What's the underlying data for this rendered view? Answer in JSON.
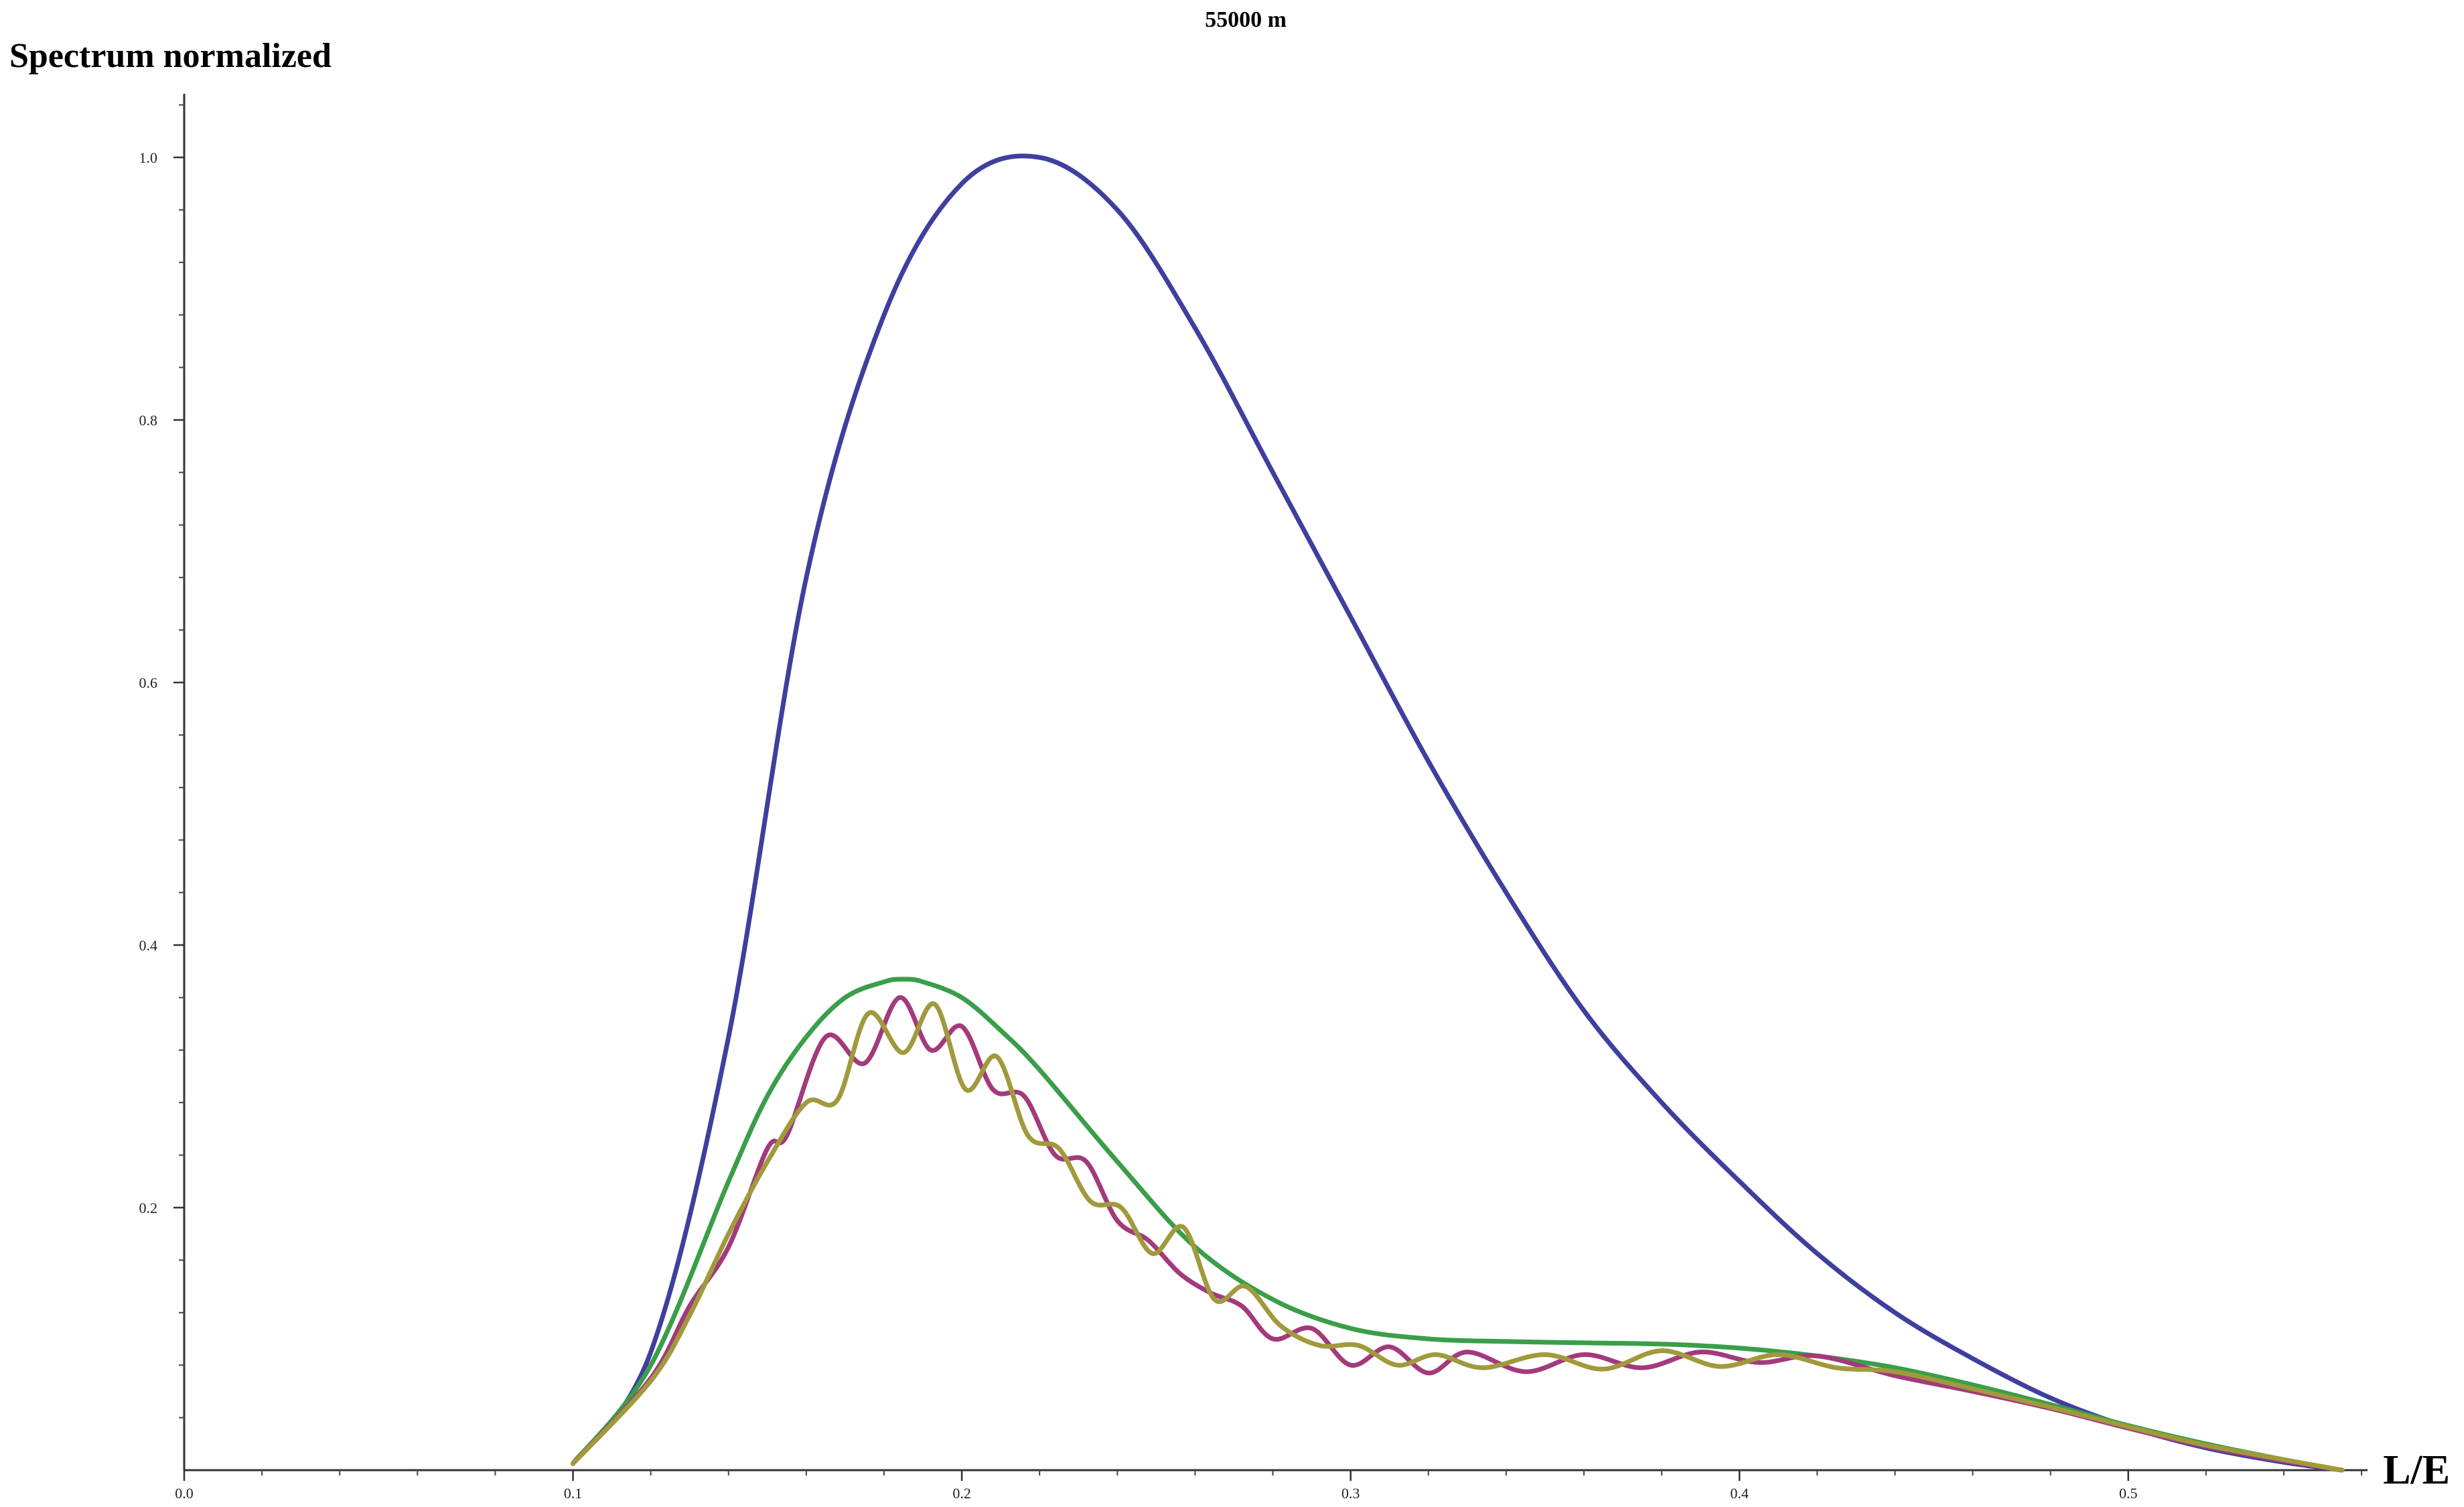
{
  "chart_data": {
    "type": "line",
    "title": "55000 m",
    "xlabel": "L/E",
    "ylabel": "Spectrum normalized",
    "xlim": [
      0,
      0.565
    ],
    "ylim": [
      0,
      1.05
    ],
    "x_ticks": [
      {
        "value": 0.0,
        "label": "0.0"
      },
      {
        "value": 0.1,
        "label": "0.1"
      },
      {
        "value": 0.2,
        "label": "0.2"
      },
      {
        "value": 0.3,
        "label": "0.3"
      },
      {
        "value": 0.4,
        "label": "0.4"
      },
      {
        "value": 0.5,
        "label": "0.5"
      }
    ],
    "y_ticks": [
      {
        "value": 0.2,
        "label": "0.2"
      },
      {
        "value": 0.4,
        "label": "0.4"
      },
      {
        "value": 0.6,
        "label": "0.6"
      },
      {
        "value": 0.8,
        "label": "0.8"
      },
      {
        "value": 1.0,
        "label": "1.0"
      }
    ],
    "grid": false,
    "series": [
      {
        "color": "#3f3f9e",
        "x": [
          0.1,
          0.12,
          0.14,
          0.16,
          0.18,
          0.2,
          0.22,
          0.24,
          0.26,
          0.28,
          0.3,
          0.32,
          0.34,
          0.36,
          0.38,
          0.4,
          0.42,
          0.44,
          0.46,
          0.48,
          0.5,
          0.52,
          0.54,
          0.555
        ],
        "y": [
          0.005,
          0.09,
          0.33,
          0.68,
          0.88,
          0.98,
          1.0,
          0.96,
          0.87,
          0.76,
          0.65,
          0.54,
          0.44,
          0.35,
          0.28,
          0.22,
          0.165,
          0.12,
          0.085,
          0.055,
          0.033,
          0.017,
          0.006,
          0.0
        ]
      },
      {
        "color": "#3a9e4a",
        "x": [
          0.1,
          0.12,
          0.14,
          0.15,
          0.16,
          0.17,
          0.18,
          0.185,
          0.19,
          0.2,
          0.21,
          0.22,
          0.24,
          0.26,
          0.28,
          0.3,
          0.32,
          0.34,
          0.36,
          0.38,
          0.4,
          0.42,
          0.44,
          0.46,
          0.48,
          0.5,
          0.52,
          0.54,
          0.555
        ],
        "y": [
          0.005,
          0.08,
          0.22,
          0.285,
          0.33,
          0.36,
          0.372,
          0.374,
          0.372,
          0.36,
          0.335,
          0.305,
          0.235,
          0.17,
          0.13,
          0.108,
          0.1,
          0.098,
          0.097,
          0.096,
          0.093,
          0.087,
          0.078,
          0.065,
          0.05,
          0.034,
          0.02,
          0.008,
          0.0
        ]
      },
      {
        "color": "#a33a7c",
        "x": [
          0.1,
          0.12,
          0.13,
          0.14,
          0.15,
          0.155,
          0.165,
          0.175,
          0.184,
          0.192,
          0.2,
          0.208,
          0.216,
          0.224,
          0.232,
          0.24,
          0.248,
          0.256,
          0.264,
          0.272,
          0.28,
          0.29,
          0.3,
          0.31,
          0.32,
          0.33,
          0.345,
          0.36,
          0.375,
          0.39,
          0.405,
          0.42,
          0.44,
          0.46,
          0.48,
          0.5,
          0.52,
          0.54,
          0.555
        ],
        "y": [
          0.005,
          0.07,
          0.125,
          0.17,
          0.245,
          0.255,
          0.33,
          0.31,
          0.36,
          0.32,
          0.338,
          0.29,
          0.285,
          0.24,
          0.235,
          0.19,
          0.175,
          0.15,
          0.135,
          0.125,
          0.1,
          0.108,
          0.08,
          0.094,
          0.074,
          0.09,
          0.075,
          0.088,
          0.078,
          0.09,
          0.082,
          0.087,
          0.072,
          0.06,
          0.047,
          0.032,
          0.018,
          0.007,
          0.0
        ]
      },
      {
        "color": "#a09a3c",
        "x": [
          0.1,
          0.12,
          0.13,
          0.14,
          0.15,
          0.16,
          0.168,
          0.176,
          0.185,
          0.193,
          0.201,
          0.209,
          0.217,
          0.225,
          0.233,
          0.241,
          0.249,
          0.257,
          0.265,
          0.273,
          0.282,
          0.292,
          0.302,
          0.312,
          0.322,
          0.334,
          0.35,
          0.365,
          0.38,
          0.395,
          0.41,
          0.425,
          0.44,
          0.46,
          0.48,
          0.5,
          0.52,
          0.54,
          0.555
        ],
        "y": [
          0.005,
          0.068,
          0.118,
          0.18,
          0.235,
          0.28,
          0.282,
          0.348,
          0.318,
          0.355,
          0.29,
          0.315,
          0.255,
          0.245,
          0.205,
          0.2,
          0.165,
          0.185,
          0.13,
          0.14,
          0.11,
          0.095,
          0.095,
          0.08,
          0.088,
          0.078,
          0.088,
          0.077,
          0.091,
          0.079,
          0.088,
          0.078,
          0.075,
          0.062,
          0.048,
          0.033,
          0.019,
          0.008,
          0.0
        ]
      }
    ]
  }
}
